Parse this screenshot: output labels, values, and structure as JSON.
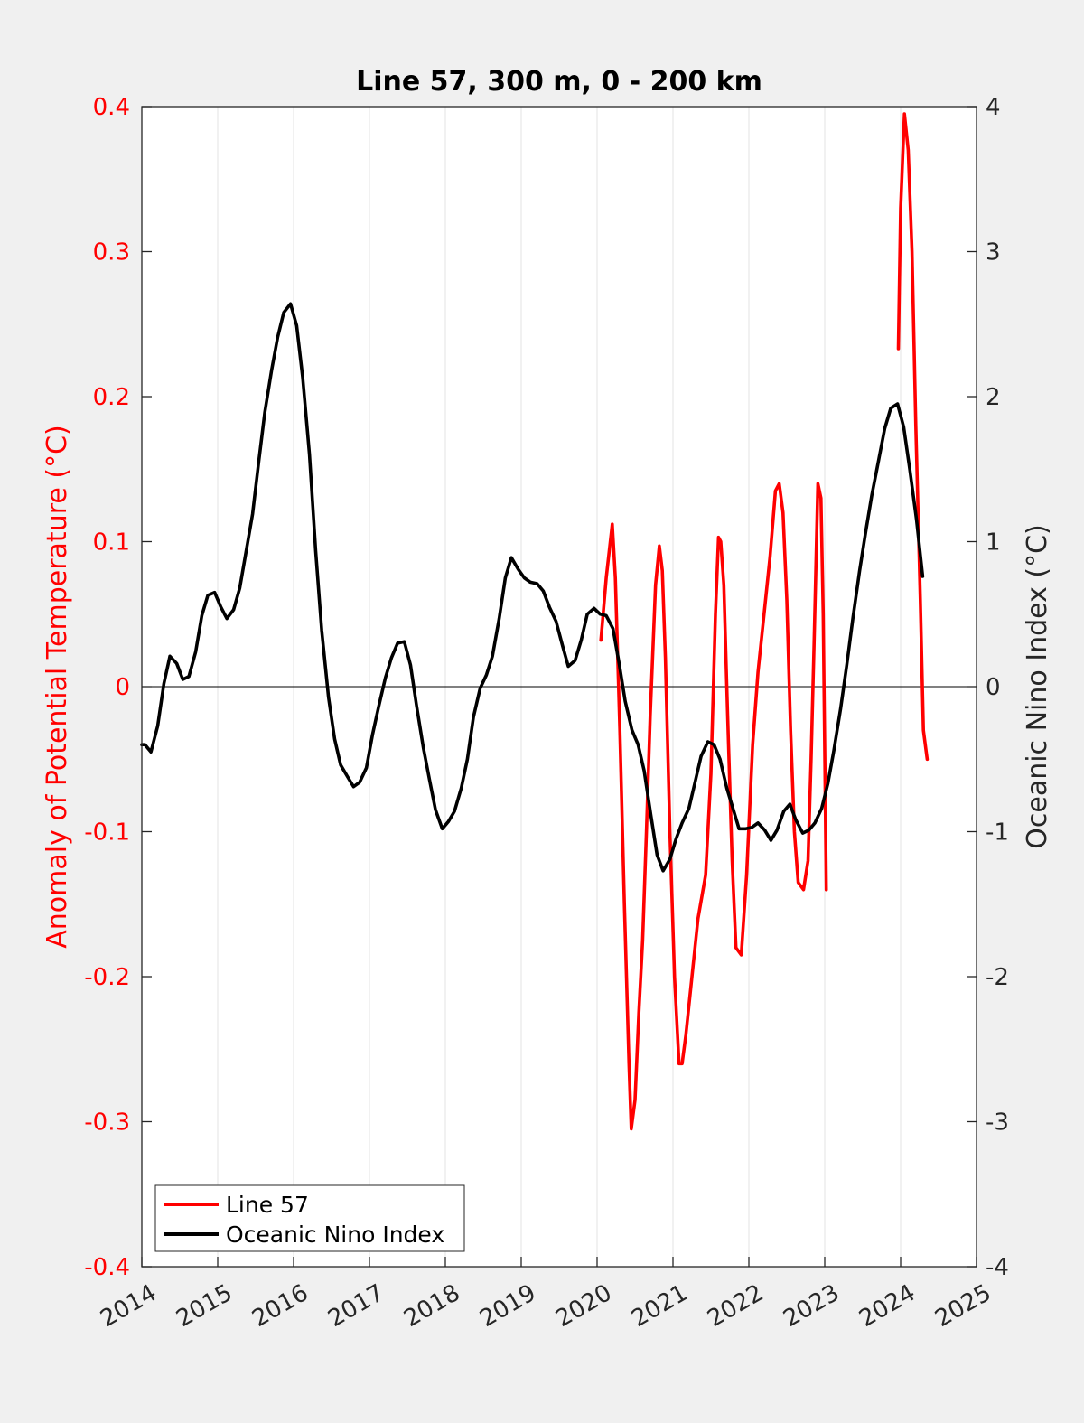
{
  "chart_data": {
    "type": "line",
    "title": "Line 57, 300 m, 0 - 200 km",
    "xlim": [
      2014,
      2025
    ],
    "x_ticks": [
      "2014",
      "2015",
      "2016",
      "2017",
      "2018",
      "2019",
      "2020",
      "2021",
      "2022",
      "2023",
      "2024",
      "2025"
    ],
    "left_axis": {
      "label": "Anomaly of Potential Temperature (°C)",
      "ylim": [
        -0.4,
        0.4
      ],
      "ticks": [
        "-0.4",
        "-0.3",
        "-0.2",
        "-0.1",
        "0",
        "0.1",
        "0.2",
        "0.3",
        "0.4"
      ],
      "color": "#ff0000"
    },
    "right_axis": {
      "label": "Oceanic Nino Index (°C)",
      "ylim": [
        -4,
        4
      ],
      "ticks": [
        "-4",
        "-3",
        "-2",
        "-1",
        "0",
        "1",
        "2",
        "3",
        "4"
      ],
      "color": "#262626"
    },
    "grid": "vertical",
    "zero_line": true,
    "legend": {
      "position": "bottom-left"
    },
    "series": [
      {
        "name": "Line 57",
        "axis": "left",
        "color": "#ff0000",
        "segments": [
          [
            [
              2020.05,
              0.032
            ],
            [
              2020.12,
              0.075
            ],
            [
              2020.2,
              0.112
            ],
            [
              2020.24,
              0.075
            ],
            [
              2020.3,
              -0.03
            ],
            [
              2020.36,
              -0.15
            ],
            [
              2020.42,
              -0.26
            ],
            [
              2020.45,
              -0.305
            ],
            [
              2020.5,
              -0.285
            ],
            [
              2020.55,
              -0.225
            ],
            [
              2020.6,
              -0.175
            ],
            [
              2020.65,
              -0.1
            ],
            [
              2020.7,
              -0.02
            ],
            [
              2020.77,
              0.07
            ],
            [
              2020.82,
              0.097
            ],
            [
              2020.86,
              0.08
            ],
            [
              2020.9,
              0.02
            ],
            [
              2020.96,
              -0.1
            ],
            [
              2021.02,
              -0.2
            ],
            [
              2021.08,
              -0.26
            ],
            [
              2021.12,
              -0.26
            ],
            [
              2021.17,
              -0.24
            ],
            [
              2021.25,
              -0.2
            ],
            [
              2021.33,
              -0.16
            ],
            [
              2021.43,
              -0.13
            ],
            [
              2021.5,
              -0.06
            ],
            [
              2021.56,
              0.05
            ],
            [
              2021.6,
              0.103
            ],
            [
              2021.63,
              0.1
            ],
            [
              2021.67,
              0.07
            ],
            [
              2021.72,
              -0.02
            ],
            [
              2021.78,
              -0.12
            ],
            [
              2021.83,
              -0.18
            ],
            [
              2021.9,
              -0.185
            ],
            [
              2021.97,
              -0.13
            ],
            [
              2022.05,
              -0.04
            ],
            [
              2022.12,
              0.01
            ],
            [
              2022.2,
              0.05
            ],
            [
              2022.28,
              0.09
            ],
            [
              2022.35,
              0.135
            ],
            [
              2022.4,
              0.14
            ],
            [
              2022.45,
              0.12
            ],
            [
              2022.5,
              0.06
            ],
            [
              2022.55,
              -0.03
            ],
            [
              2022.6,
              -0.1
            ],
            [
              2022.65,
              -0.135
            ],
            [
              2022.72,
              -0.14
            ],
            [
              2022.78,
              -0.12
            ],
            [
              2022.82,
              -0.05
            ],
            [
              2022.86,
              0.03
            ],
            [
              2022.91,
              0.14
            ],
            [
              2022.95,
              0.13
            ],
            [
              2022.98,
              0.05
            ],
            [
              2023.02,
              -0.14
            ]
          ],
          [
            [
              2023.97,
              0.233
            ],
            [
              2024.0,
              0.33
            ],
            [
              2024.05,
              0.395
            ],
            [
              2024.1,
              0.37
            ],
            [
              2024.15,
              0.3
            ],
            [
              2024.2,
              0.18
            ],
            [
              2024.26,
              0.06
            ],
            [
              2024.3,
              -0.03
            ],
            [
              2024.35,
              -0.05
            ]
          ]
        ]
      },
      {
        "name": "Oceanic Nino Index",
        "axis": "right",
        "color": "#000000",
        "segments": [
          [
            [
              2014.0,
              -0.4
            ],
            [
              2014.04,
              -0.4
            ],
            [
              2014.12,
              -0.45
            ],
            [
              2014.21,
              -0.27
            ],
            [
              2014.29,
              0.02
            ],
            [
              2014.37,
              0.21
            ],
            [
              2014.46,
              0.16
            ],
            [
              2014.54,
              0.05
            ],
            [
              2014.62,
              0.07
            ],
            [
              2014.71,
              0.24
            ],
            [
              2014.79,
              0.49
            ],
            [
              2014.87,
              0.63
            ],
            [
              2014.96,
              0.65
            ],
            [
              2015.04,
              0.55
            ],
            [
              2015.12,
              0.47
            ],
            [
              2015.21,
              0.53
            ],
            [
              2015.29,
              0.68
            ],
            [
              2015.37,
              0.92
            ],
            [
              2015.46,
              1.19
            ],
            [
              2015.54,
              1.55
            ],
            [
              2015.62,
              1.89
            ],
            [
              2015.71,
              2.18
            ],
            [
              2015.79,
              2.41
            ],
            [
              2015.87,
              2.58
            ],
            [
              2015.96,
              2.64
            ],
            [
              2016.04,
              2.49
            ],
            [
              2016.12,
              2.13
            ],
            [
              2016.21,
              1.6
            ],
            [
              2016.29,
              0.94
            ],
            [
              2016.37,
              0.39
            ],
            [
              2016.46,
              -0.07
            ],
            [
              2016.54,
              -0.36
            ],
            [
              2016.62,
              -0.54
            ],
            [
              2016.71,
              -0.62
            ],
            [
              2016.79,
              -0.69
            ],
            [
              2016.87,
              -0.66
            ],
            [
              2016.96,
              -0.56
            ],
            [
              2017.04,
              -0.33
            ],
            [
              2017.12,
              -0.14
            ],
            [
              2017.21,
              0.06
            ],
            [
              2017.29,
              0.2
            ],
            [
              2017.37,
              0.3
            ],
            [
              2017.46,
              0.31
            ],
            [
              2017.54,
              0.15
            ],
            [
              2017.62,
              -0.13
            ],
            [
              2017.71,
              -0.42
            ],
            [
              2017.79,
              -0.64
            ],
            [
              2017.87,
              -0.85
            ],
            [
              2017.96,
              -0.98
            ],
            [
              2018.04,
              -0.93
            ],
            [
              2018.12,
              -0.86
            ],
            [
              2018.21,
              -0.7
            ],
            [
              2018.29,
              -0.5
            ],
            [
              2018.37,
              -0.21
            ],
            [
              2018.46,
              -0.01
            ],
            [
              2018.54,
              0.08
            ],
            [
              2018.62,
              0.21
            ],
            [
              2018.71,
              0.47
            ],
            [
              2018.79,
              0.75
            ],
            [
              2018.87,
              0.89
            ],
            [
              2018.96,
              0.81
            ],
            [
              2019.04,
              0.75
            ],
            [
              2019.12,
              0.72
            ],
            [
              2019.21,
              0.71
            ],
            [
              2019.29,
              0.66
            ],
            [
              2019.37,
              0.55
            ],
            [
              2019.46,
              0.45
            ],
            [
              2019.54,
              0.29
            ],
            [
              2019.62,
              0.14
            ],
            [
              2019.71,
              0.18
            ],
            [
              2019.79,
              0.32
            ],
            [
              2019.87,
              0.5
            ],
            [
              2019.96,
              0.54
            ],
            [
              2020.04,
              0.5
            ],
            [
              2020.12,
              0.49
            ],
            [
              2020.21,
              0.4
            ],
            [
              2020.29,
              0.16
            ],
            [
              2020.37,
              -0.1
            ],
            [
              2020.46,
              -0.3
            ],
            [
              2020.54,
              -0.4
            ],
            [
              2020.62,
              -0.58
            ],
            [
              2020.71,
              -0.89
            ],
            [
              2020.79,
              -1.16
            ],
            [
              2020.87,
              -1.27
            ],
            [
              2020.96,
              -1.19
            ],
            [
              2021.04,
              -1.05
            ],
            [
              2021.12,
              -0.94
            ],
            [
              2021.21,
              -0.84
            ],
            [
              2021.29,
              -0.66
            ],
            [
              2021.37,
              -0.48
            ],
            [
              2021.46,
              -0.38
            ],
            [
              2021.54,
              -0.4
            ],
            [
              2021.62,
              -0.5
            ],
            [
              2021.71,
              -0.7
            ],
            [
              2021.79,
              -0.84
            ],
            [
              2021.87,
              -0.98
            ],
            [
              2021.96,
              -0.98
            ],
            [
              2022.04,
              -0.97
            ],
            [
              2022.12,
              -0.94
            ],
            [
              2022.21,
              -0.99
            ],
            [
              2022.29,
              -1.06
            ],
            [
              2022.37,
              -0.99
            ],
            [
              2022.46,
              -0.86
            ],
            [
              2022.54,
              -0.81
            ],
            [
              2022.62,
              -0.92
            ],
            [
              2022.71,
              -1.01
            ],
            [
              2022.79,
              -0.99
            ],
            [
              2022.87,
              -0.94
            ],
            [
              2022.96,
              -0.84
            ],
            [
              2023.04,
              -0.67
            ],
            [
              2023.12,
              -0.44
            ],
            [
              2023.21,
              -0.15
            ],
            [
              2023.29,
              0.15
            ],
            [
              2023.37,
              0.47
            ],
            [
              2023.46,
              0.8
            ],
            [
              2023.54,
              1.07
            ],
            [
              2023.62,
              1.32
            ],
            [
              2023.71,
              1.56
            ],
            [
              2023.79,
              1.78
            ],
            [
              2023.87,
              1.92
            ],
            [
              2023.96,
              1.95
            ],
            [
              2024.04,
              1.79
            ],
            [
              2024.12,
              1.5
            ],
            [
              2024.21,
              1.15
            ],
            [
              2024.29,
              0.76
            ]
          ]
        ]
      }
    ]
  }
}
